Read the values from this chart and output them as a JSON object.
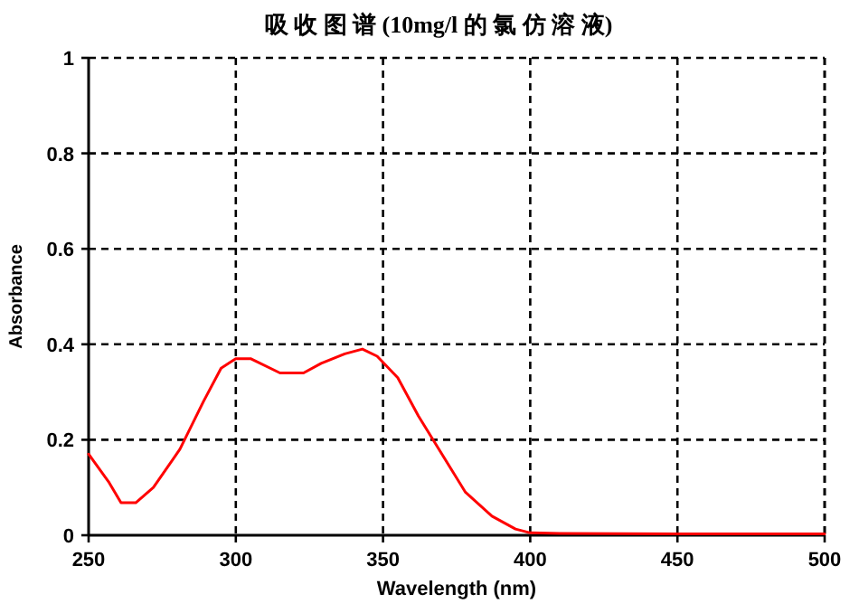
{
  "chart_data": {
    "type": "line",
    "title": "吸 收 图 谱 (10mg/l 的 氯 仿 溶 液)",
    "xlabel": "Wavelength (nm)",
    "ylabel": "Absorbance",
    "x": [
      250,
      257,
      261,
      266,
      272,
      281,
      289,
      295,
      300,
      305,
      315,
      323,
      329,
      337,
      343,
      348,
      355,
      362,
      370,
      378,
      387,
      395,
      400,
      410,
      450,
      500
    ],
    "series": [
      {
        "color": "#ff0000",
        "values": [
          0.17,
          0.11,
          0.068,
          0.068,
          0.1,
          0.18,
          0.28,
          0.35,
          0.37,
          0.37,
          0.34,
          0.34,
          0.36,
          0.38,
          0.39,
          0.375,
          0.33,
          0.25,
          0.17,
          0.09,
          0.04,
          0.013,
          0.005,
          0.004,
          0.003,
          0.003
        ]
      }
    ],
    "xlim": [
      250,
      500
    ],
    "xticks": [
      250,
      300,
      350,
      400,
      450,
      500
    ],
    "ylim": [
      0,
      1
    ],
    "yticks": [
      0,
      0.2,
      0.4,
      0.6,
      0.8,
      1
    ],
    "grid": true,
    "line_style": "solid"
  }
}
